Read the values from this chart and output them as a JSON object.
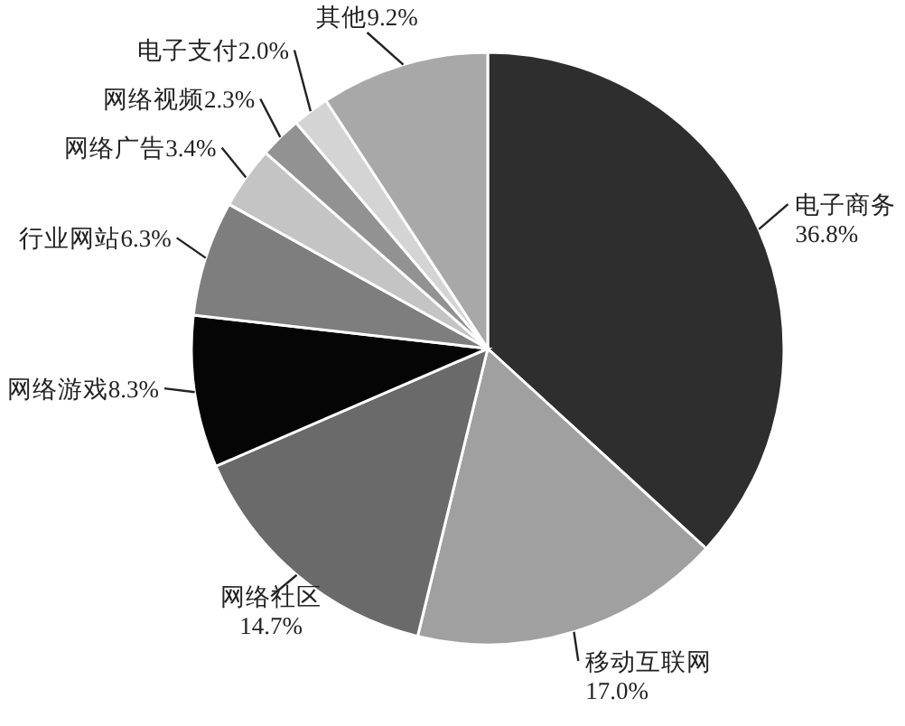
{
  "chart_data": {
    "type": "pie",
    "categories": [
      "电子商务",
      "移动互联网",
      "网络社区",
      "网络游戏",
      "行业网站",
      "网络广告",
      "网络视频",
      "电子支付",
      "其他"
    ],
    "values": [
      36.8,
      17.0,
      14.7,
      8.3,
      6.3,
      3.4,
      2.3,
      2.0,
      9.2
    ],
    "value_labels": [
      "36.8%",
      "17.0%",
      "14.7%",
      "8.3%",
      "6.3%",
      "3.4%",
      "2.3%",
      "2.0%",
      "9.2%"
    ],
    "colors": [
      "#2e2e2e",
      "#a0a0a0",
      "#6a6a6a",
      "#050505",
      "#7e7e7e",
      "#c4c4c4",
      "#929292",
      "#d4d4d4",
      "#a8a8a8"
    ]
  }
}
